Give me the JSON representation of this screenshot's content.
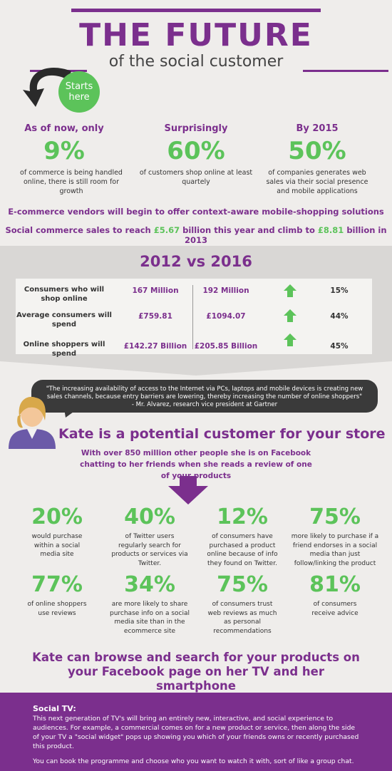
{
  "header": {
    "title": "THE FUTURE",
    "subtitle": "of the social customer",
    "starts_here": "Starts here"
  },
  "top_stats": [
    {
      "heading": "As of now, only",
      "value": "9%",
      "desc": "of commerce is being handled online, there is still room for growth"
    },
    {
      "heading": "Surprisingly",
      "value": "60%",
      "desc": "of customers shop online at least quartely"
    },
    {
      "heading": "By 2015",
      "value": "50%",
      "desc": "of companies generates web sales via their social presence and mobile applications"
    }
  ],
  "ecommerce_line": "E-commerce vendors will begin to offer context-aware mobile-shopping solutions",
  "social_commerce": {
    "part1": "Social commerce sales to reach ",
    "amount1": "£5.67",
    "part2": " billion this year and climb to ",
    "amount2": "£8.81",
    "part3": " billion in 2013"
  },
  "comparison": {
    "title": "2012 vs 2016",
    "rows": [
      {
        "label": "Consumers who will shop online",
        "v2012": "167 Million",
        "v2016": "192 Million",
        "pct": "15%"
      },
      {
        "label": "Average consumers will spend",
        "v2012": "£759.81",
        "v2016": "£1094.07",
        "pct": "44%"
      },
      {
        "label": "Online shoppers will spend",
        "v2012": "£142.27 Billion",
        "v2016": "£205.85 Billion",
        "pct": "45%"
      }
    ]
  },
  "quote": {
    "text": "\"The increasing availability of access to the Internet via PCs, laptops and mobile devices is creating new sales channels, because entry barriers are lowering, thereby increasing the number of online shoppers\"",
    "attribution": "- Mr. Alvarez, research vice president at Gartner"
  },
  "kate": {
    "title": "Kate is a potential customer for your store",
    "text": "With over 850 million other people she is on Facebook chatting to her friends when she reads a review of one of your products"
  },
  "grid_stats": [
    {
      "value": "20%",
      "desc": "would purchase within a social media site"
    },
    {
      "value": "40%",
      "desc": "of Twitter users regularly search for products or services via Twitter."
    },
    {
      "value": "12%",
      "desc": "of consumers have purchased a product online because of info they found on Twitter."
    },
    {
      "value": "75%",
      "desc": "more likely to purchase if a friend endorses in a social media than just follow/linking the product"
    },
    {
      "value": "77%",
      "desc": "of online shoppers use reviews"
    },
    {
      "value": "34%",
      "desc": "are more likely to share purchase info on a social media site than in the ecommerce site"
    },
    {
      "value": "75%",
      "desc": "of consumers trust web reviews as much as personal recommendations"
    },
    {
      "value": "81%",
      "desc": "of consumers receive advice"
    }
  ],
  "browse_line": "Kate can browse and search for your products on your Facebook page on her TV and her smartphone",
  "footer": {
    "title": "Social TV:",
    "p1": "This next generation of TV's will bring an entirely new, interactive, and social experience to audiences. For example, a commercial comes on for a new product or service, then along the side of your TV a \"social widget\" pops up showing you which of your friends owns or recently purchased this product.",
    "p2": "You can book the programme and choose who you want to watch it with, sort of like a group chat."
  },
  "colors": {
    "purple": "#7b2f8d",
    "green": "#5cc35a",
    "dark": "#3a3a3a",
    "band": "#d9d7d5"
  }
}
